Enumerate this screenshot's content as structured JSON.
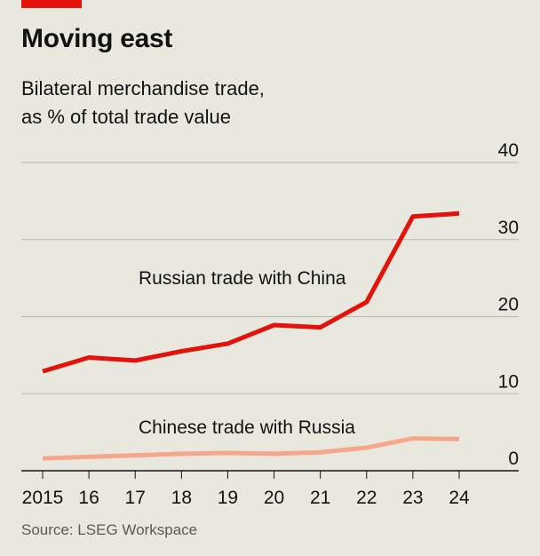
{
  "header": {
    "title": "Moving east",
    "subtitle_line1": "Bilateral merchandise trade,",
    "subtitle_line2": "as % of total trade value"
  },
  "source": "Source: LSEG Workspace",
  "colors": {
    "accent": "#e3120b",
    "series_china": "#e3120b",
    "series_russia": "#f6a68a",
    "gridline": "#b7b7b0",
    "background": "#e9e8df"
  },
  "chart_data": {
    "type": "line",
    "x": [
      2015,
      2016,
      2017,
      2018,
      2019,
      2020,
      2021,
      2022,
      2023,
      2024
    ],
    "x_tick_labels": [
      "2015",
      "16",
      "17",
      "18",
      "19",
      "20",
      "21",
      "22",
      "23",
      "24"
    ],
    "ylim": [
      0,
      40
    ],
    "y_ticks": [
      0,
      10,
      20,
      30,
      40
    ],
    "y_axis_side": "right",
    "grid": true,
    "series": [
      {
        "name": "Russian trade with China",
        "color": "#e3120b",
        "values": [
          12.9,
          14.7,
          14.3,
          15.5,
          16.5,
          18.9,
          18.6,
          21.9,
          33.0,
          33.4
        ]
      },
      {
        "name": "Chinese trade with Russia",
        "color": "#f6a68a",
        "values": [
          1.6,
          1.8,
          2.0,
          2.2,
          2.3,
          2.2,
          2.4,
          3.0,
          4.2,
          4.1
        ]
      }
    ]
  }
}
